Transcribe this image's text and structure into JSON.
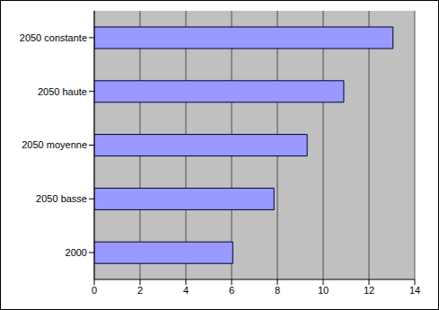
{
  "chart_data": {
    "type": "bar",
    "orientation": "horizontal",
    "categories": [
      "2050 constante",
      "2050 haute",
      "2050 moyenne",
      "2050 basse",
      "2000"
    ],
    "values": [
      13.05,
      10.9,
      9.3,
      7.85,
      6.05
    ],
    "color": "#9999ff",
    "xlim": [
      0,
      14
    ],
    "xticks": [
      0,
      2,
      4,
      6,
      8,
      10,
      12,
      14
    ],
    "grid": true
  }
}
